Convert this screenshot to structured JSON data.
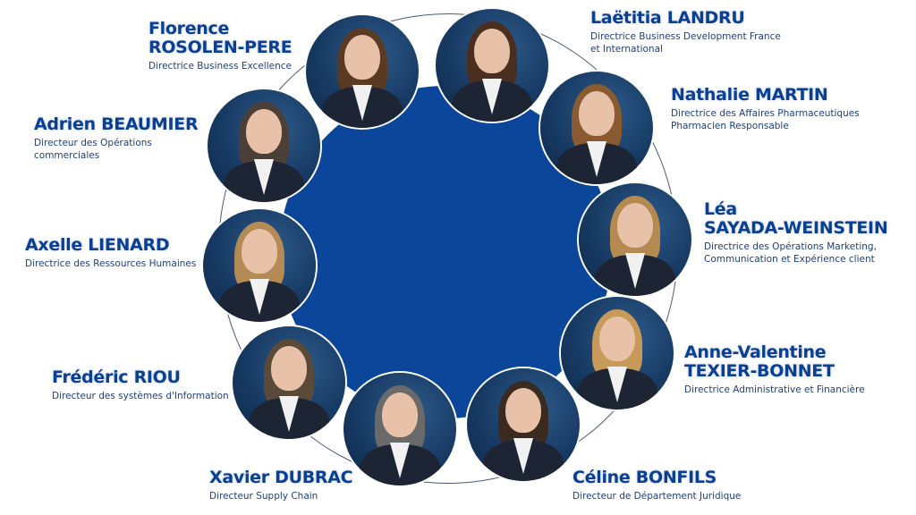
{
  "colors": {
    "accent": "#0b469b",
    "name_text": "#0a3f92",
    "ring": "#4a5878"
  },
  "people": [
    {
      "name_line1": "Florence",
      "name_line2": "ROSOLEN-PERE",
      "title_line1": "Directrice Business Excellence",
      "title_line2": "",
      "hair": "#5a3a22"
    },
    {
      "name_line1": "Laëtitia LANDRU",
      "name_line2": "",
      "title_line1": "Directrice Business Development France",
      "title_line2": "et International",
      "hair": "#4a2e20"
    },
    {
      "name_line1": "Nathalie MARTIN",
      "name_line2": "",
      "title_line1": "Directrice des Affaires Pharmaceutiques",
      "title_line2": "Pharmacien Responsable",
      "hair": "#8a5a30"
    },
    {
      "name_line1": "Léa",
      "name_line2": "SAYADA-WEINSTEIN",
      "title_line1": "Directrice des Opérations Marketing,",
      "title_line2": "Communication et Expérience client",
      "hair": "#b58a50"
    },
    {
      "name_line1": "Anne-Valentine",
      "name_line2": "TEXIER-BONNET",
      "title_line1": "Directrice Administrative et Financière",
      "title_line2": "",
      "hair": "#c79a5a"
    },
    {
      "name_line1": "Céline BONFILS",
      "name_line2": "",
      "title_line1": "Directeur de Département Juridique",
      "title_line2": "",
      "hair": "#3a2a20"
    },
    {
      "name_line1": "Xavier DUBRAC",
      "name_line2": "",
      "title_line1": "Directeur Supply Chain",
      "title_line2": "",
      "hair": "#6a6a6a"
    },
    {
      "name_line1": "Frédéric RIOU",
      "name_line2": "",
      "title_line1": "Directeur des systèmes d'Information",
      "title_line2": "",
      "hair": "#5a4a3a"
    },
    {
      "name_line1": "Axelle LIENARD",
      "name_line2": "",
      "title_line1": "Directrice des Ressources Humaines",
      "title_line2": "",
      "hair": "#b48a55"
    },
    {
      "name_line1": "Adrien BEAUMIER",
      "name_line2": "",
      "title_line1": "Directeur des Opérations",
      "title_line2": "commerciales",
      "hair": "#4a4038"
    }
  ]
}
